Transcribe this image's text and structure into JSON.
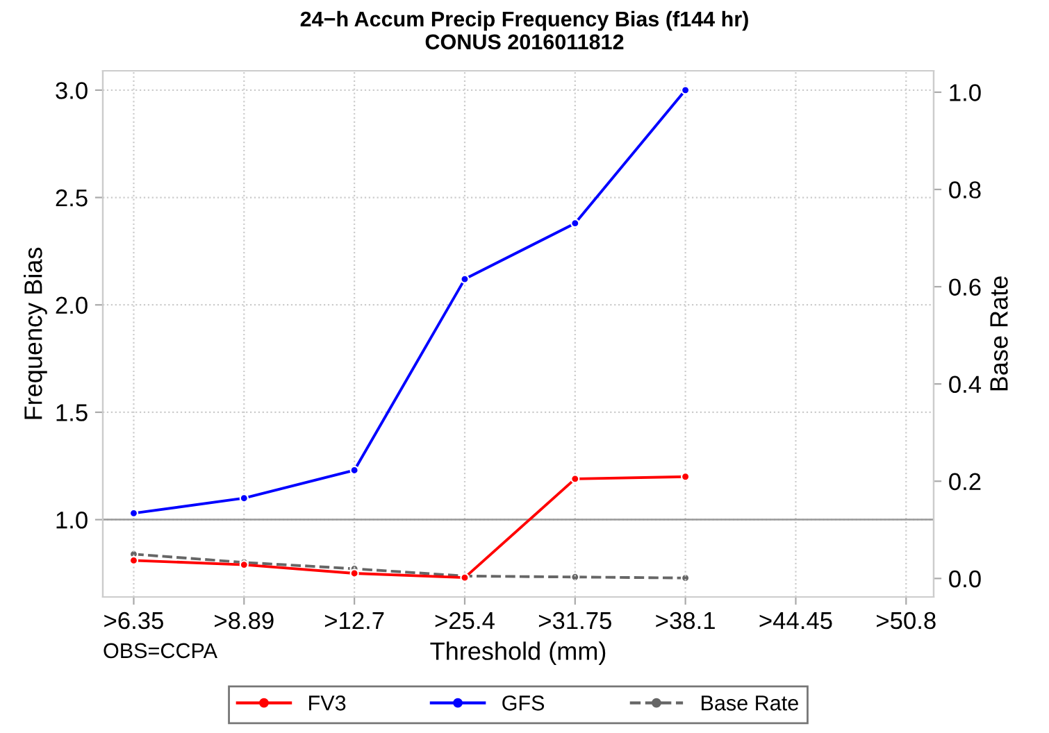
{
  "chart_data": {
    "type": "line",
    "title": "24−h Accum Precip Frequency Bias (f144 hr)\nCONUS 2016011812",
    "xlabel": "Threshold (mm)",
    "ylabel": "Frequency Bias",
    "y2label": "Base Rate",
    "categories": [
      ">6.35",
      ">8.89",
      ">12.7",
      ">25.4",
      ">31.75",
      ">38.1",
      ">44.45",
      ">50.8"
    ],
    "series": [
      {
        "name": "FV3",
        "color": "#ff0000",
        "values": [
          0.81,
          0.79,
          0.75,
          0.73,
          1.19,
          1.2,
          null,
          null
        ]
      },
      {
        "name": "GFS",
        "color": "#0000ff",
        "values": [
          1.03,
          1.1,
          1.23,
          2.12,
          2.38,
          3.0,
          null,
          null
        ]
      },
      {
        "name": "Base Rate",
        "color": "#666666",
        "axis": "y2",
        "line_style": "dashed",
        "values": [
          0.05,
          0.033,
          0.02,
          0.005,
          0.003,
          0.001,
          null,
          null
        ]
      }
    ],
    "ylim": [
      0.64,
      3.09
    ],
    "yticks": [
      {
        "value": 1.0,
        "label": "1.0"
      },
      1.5,
      {
        "value": 2.0,
        "label": "2.0"
      },
      2.5,
      {
        "value": 3.0,
        "label": "3.0"
      }
    ],
    "y2lim": [
      -0.038,
      1.044
    ],
    "y2ticks": [
      {
        "value": 0.0,
        "label": "0.0"
      },
      0.2,
      0.4,
      0.6,
      0.8,
      {
        "value": 1.0,
        "label": "1.0"
      }
    ],
    "ref_lines": [
      {
        "axis": "y",
        "value": 1.0,
        "color": "#999999"
      }
    ],
    "annotations": [
      "OBS=CCPA"
    ],
    "grid": true,
    "legend": "bottom",
    "marker": "circle",
    "line_style": "solid"
  }
}
